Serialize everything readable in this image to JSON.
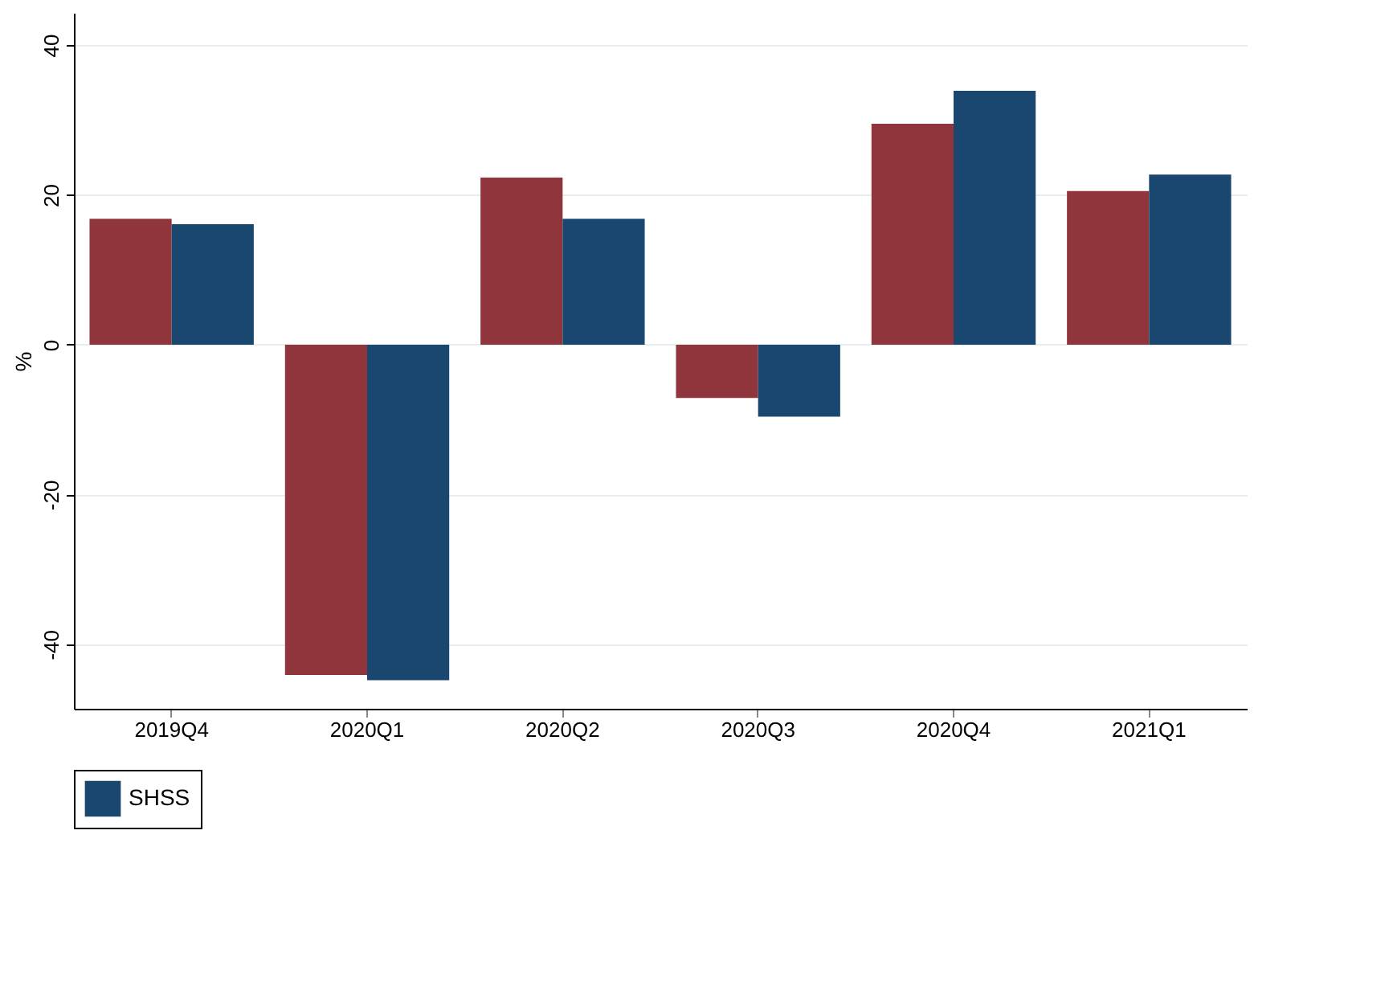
{
  "chart_data": {
    "type": "bar",
    "ylabel": "%",
    "categories": [
      "2019Q4",
      "2020Q1",
      "2020Q2",
      "2020Q3",
      "2020Q4",
      "2021Q1"
    ],
    "series": [
      {
        "color": "#90353b",
        "values": [
          16.8,
          -44.1,
          22.3,
          -7.1,
          29.5,
          20.5
        ]
      },
      {
        "name": "SHSS",
        "color": "#1a476f",
        "values": [
          16.1,
          -44.8,
          16.8,
          -9.6,
          33.9,
          22.7
        ]
      }
    ],
    "ylim": [
      -48.6,
      44.3
    ],
    "yticks": [
      -40,
      -20,
      0,
      20,
      40
    ],
    "grid": "y",
    "legend": "bottom"
  }
}
